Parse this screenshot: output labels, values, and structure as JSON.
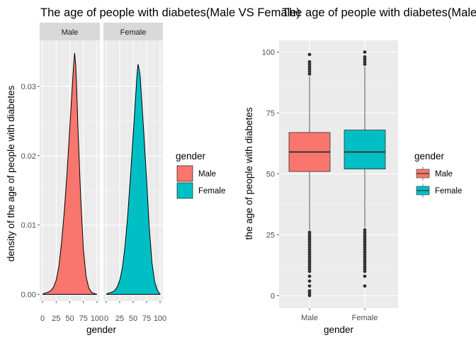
{
  "colors": {
    "male": "#F8766D",
    "female": "#00BFC4",
    "panel": "#EBEBEB",
    "strip": "#D9D9D9",
    "grid_major": "#FFFFFF"
  },
  "chart_data": [
    {
      "type": "area",
      "subtype": "faceted-density",
      "title": "The age of people with diabetes(Male VS Female)",
      "xlabel": "gender",
      "ylabel": "density of the age of people with diabetes",
      "facets": [
        "Male",
        "Female"
      ],
      "xlim": [
        0,
        100
      ],
      "ylim": [
        0,
        0.035
      ],
      "x_ticks": [
        "0",
        "25",
        "50",
        "75",
        "100"
      ],
      "y_ticks": [
        "0.00",
        "0.01",
        "0.02",
        "0.03"
      ],
      "grid": true,
      "legend": {
        "title": "gender",
        "position": "right",
        "entries": [
          "Male",
          "Female"
        ]
      },
      "series": [
        {
          "name": "Male",
          "x": [
            0,
            5,
            10,
            15,
            20,
            25,
            30,
            35,
            40,
            45,
            50,
            55,
            57,
            59,
            61,
            63,
            65,
            70,
            75,
            80,
            85,
            90,
            95,
            100
          ],
          "values": [
            0,
            0.0002,
            0.0003,
            0.0005,
            0.001,
            0.002,
            0.004,
            0.0075,
            0.012,
            0.0175,
            0.024,
            0.0305,
            0.033,
            0.0348,
            0.033,
            0.029,
            0.024,
            0.014,
            0.0065,
            0.0025,
            0.0009,
            0.0003,
            0.0001,
            0
          ]
        },
        {
          "name": "Female",
          "x": [
            0,
            5,
            10,
            15,
            20,
            25,
            30,
            35,
            40,
            45,
            50,
            55,
            57,
            59,
            61,
            63,
            65,
            70,
            75,
            80,
            85,
            90,
            95,
            100
          ],
          "values": [
            0,
            0.0002,
            0.0003,
            0.0005,
            0.001,
            0.002,
            0.0038,
            0.007,
            0.0115,
            0.017,
            0.023,
            0.029,
            0.0315,
            0.0332,
            0.0325,
            0.0315,
            0.029,
            0.023,
            0.0165,
            0.0095,
            0.0045,
            0.0018,
            0.0006,
            0
          ]
        }
      ]
    },
    {
      "type": "boxplot",
      "title": "The age of people with diabetes(Male VS Female)",
      "xlabel": "gender",
      "ylabel": "the age of people with diabetes",
      "categories": [
        "Male",
        "Female"
      ],
      "ylim": [
        0,
        100
      ],
      "y_ticks": [
        "0",
        "25",
        "50",
        "75",
        "100"
      ],
      "grid": true,
      "legend": {
        "title": "gender",
        "position": "right",
        "entries": [
          "Male",
          "Female"
        ]
      },
      "boxes": [
        {
          "name": "Male",
          "whisker_low": 27,
          "q1": 51,
          "median": 59,
          "q3": 67,
          "whisker_high": 90,
          "outliers": [
            0.1,
            1,
            2,
            4,
            6,
            8,
            10,
            11,
            12,
            13,
            14,
            15,
            16,
            17,
            18,
            19,
            20,
            21,
            22,
            23,
            24,
            25,
            26,
            91,
            92,
            93,
            94,
            95,
            96,
            99
          ]
        },
        {
          "name": "Female",
          "whisker_low": 28,
          "q1": 52,
          "median": 59,
          "q3": 68,
          "whisker_high": 94,
          "outliers": [
            4,
            8,
            10,
            11,
            12,
            13,
            14,
            15,
            16,
            17,
            18,
            19,
            20,
            21,
            22,
            23,
            24,
            25,
            26,
            27,
            95,
            96,
            97,
            98,
            100
          ]
        }
      ]
    }
  ]
}
